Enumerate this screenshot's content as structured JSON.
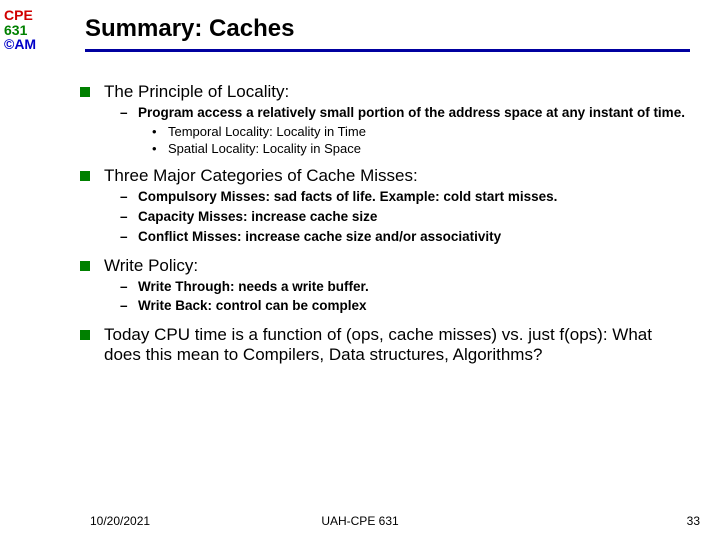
{
  "logo": {
    "line1": "CPE",
    "line2": "631",
    "line3": "©AM"
  },
  "title": "Summary: Caches",
  "colors": {
    "title_rule": "#0000a0",
    "bullet_square": "#008000",
    "logo_cpe": "#d10000",
    "logo_num": "#008000",
    "logo_am": "#0000c8",
    "background": "#ffffff",
    "text": "#000000"
  },
  "typography": {
    "title_fontsize": 24,
    "lvl1_fontsize": 17,
    "lvl2_fontsize": 13.5,
    "lvl3_fontsize": 13,
    "footer_fontsize": 12
  },
  "sections": [
    {
      "heading": "The Principle of Locality:",
      "subs": [
        {
          "text": "Program access a relatively small portion of the address space at any instant of time.",
          "subsubs": [
            "Temporal Locality: Locality in Time",
            "Spatial Locality: Locality in Space"
          ]
        }
      ]
    },
    {
      "heading": "Three Major Categories of Cache Misses:",
      "subs": [
        {
          "text": "Compulsory Misses: sad facts of life.  Example: cold start misses."
        },
        {
          "text": "Capacity Misses: increase cache size"
        },
        {
          "text": "Conflict Misses:  increase cache size and/or associativity"
        }
      ]
    },
    {
      "heading": "Write Policy:",
      "subs": [
        {
          "text": "Write Through: needs a write buffer."
        },
        {
          "text": "Write Back: control can be complex"
        }
      ]
    },
    {
      "heading": "Today CPU time is a function  of (ops, cache misses) vs. just f(ops): What does this mean to Compilers, Data structures, Algorithms?"
    }
  ],
  "footer": {
    "date": "10/20/2021",
    "center": "UAH-CPE 631",
    "page": "33"
  }
}
